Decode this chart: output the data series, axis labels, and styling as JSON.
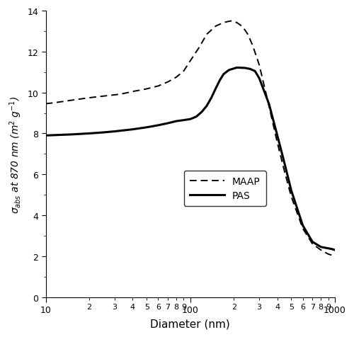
{
  "title": "",
  "xlabel": "Diameter (nm)",
  "xlim": [
    10,
    1000
  ],
  "ylim": [
    0,
    14
  ],
  "yticks": [
    0,
    2,
    4,
    6,
    8,
    10,
    12,
    14
  ],
  "background_color": "#ffffff",
  "legend_labels": [
    "MAAP",
    "PAS"
  ],
  "maap_x": [
    10,
    12,
    15,
    18,
    22,
    27,
    33,
    40,
    50,
    60,
    70,
    80,
    90,
    100,
    115,
    130,
    150,
    170,
    190,
    210,
    230,
    250,
    270,
    300,
    350,
    400,
    450,
    500,
    600,
    700,
    800,
    900,
    950,
    1000
  ],
  "maap_y": [
    9.45,
    9.52,
    9.62,
    9.7,
    9.78,
    9.85,
    9.92,
    10.05,
    10.18,
    10.32,
    10.52,
    10.75,
    11.05,
    11.55,
    12.2,
    12.85,
    13.25,
    13.42,
    13.5,
    13.42,
    13.22,
    12.85,
    12.3,
    11.35,
    9.35,
    7.55,
    6.1,
    4.9,
    3.35,
    2.6,
    2.3,
    2.1,
    2.05,
    2.0
  ],
  "pas_x": [
    10,
    15,
    20,
    25,
    30,
    40,
    50,
    60,
    70,
    80,
    90,
    100,
    110,
    120,
    130,
    140,
    150,
    160,
    170,
    185,
    210,
    240,
    260,
    280,
    300,
    350,
    400,
    450,
    500,
    600,
    700,
    800,
    900,
    950,
    1000
  ],
  "pas_y": [
    7.9,
    7.95,
    8.0,
    8.05,
    8.1,
    8.2,
    8.3,
    8.4,
    8.5,
    8.6,
    8.65,
    8.7,
    8.82,
    9.05,
    9.35,
    9.75,
    10.2,
    10.6,
    10.9,
    11.1,
    11.22,
    11.2,
    11.15,
    11.05,
    10.7,
    9.45,
    7.9,
    6.5,
    5.2,
    3.5,
    2.7,
    2.45,
    2.38,
    2.35,
    2.3
  ]
}
